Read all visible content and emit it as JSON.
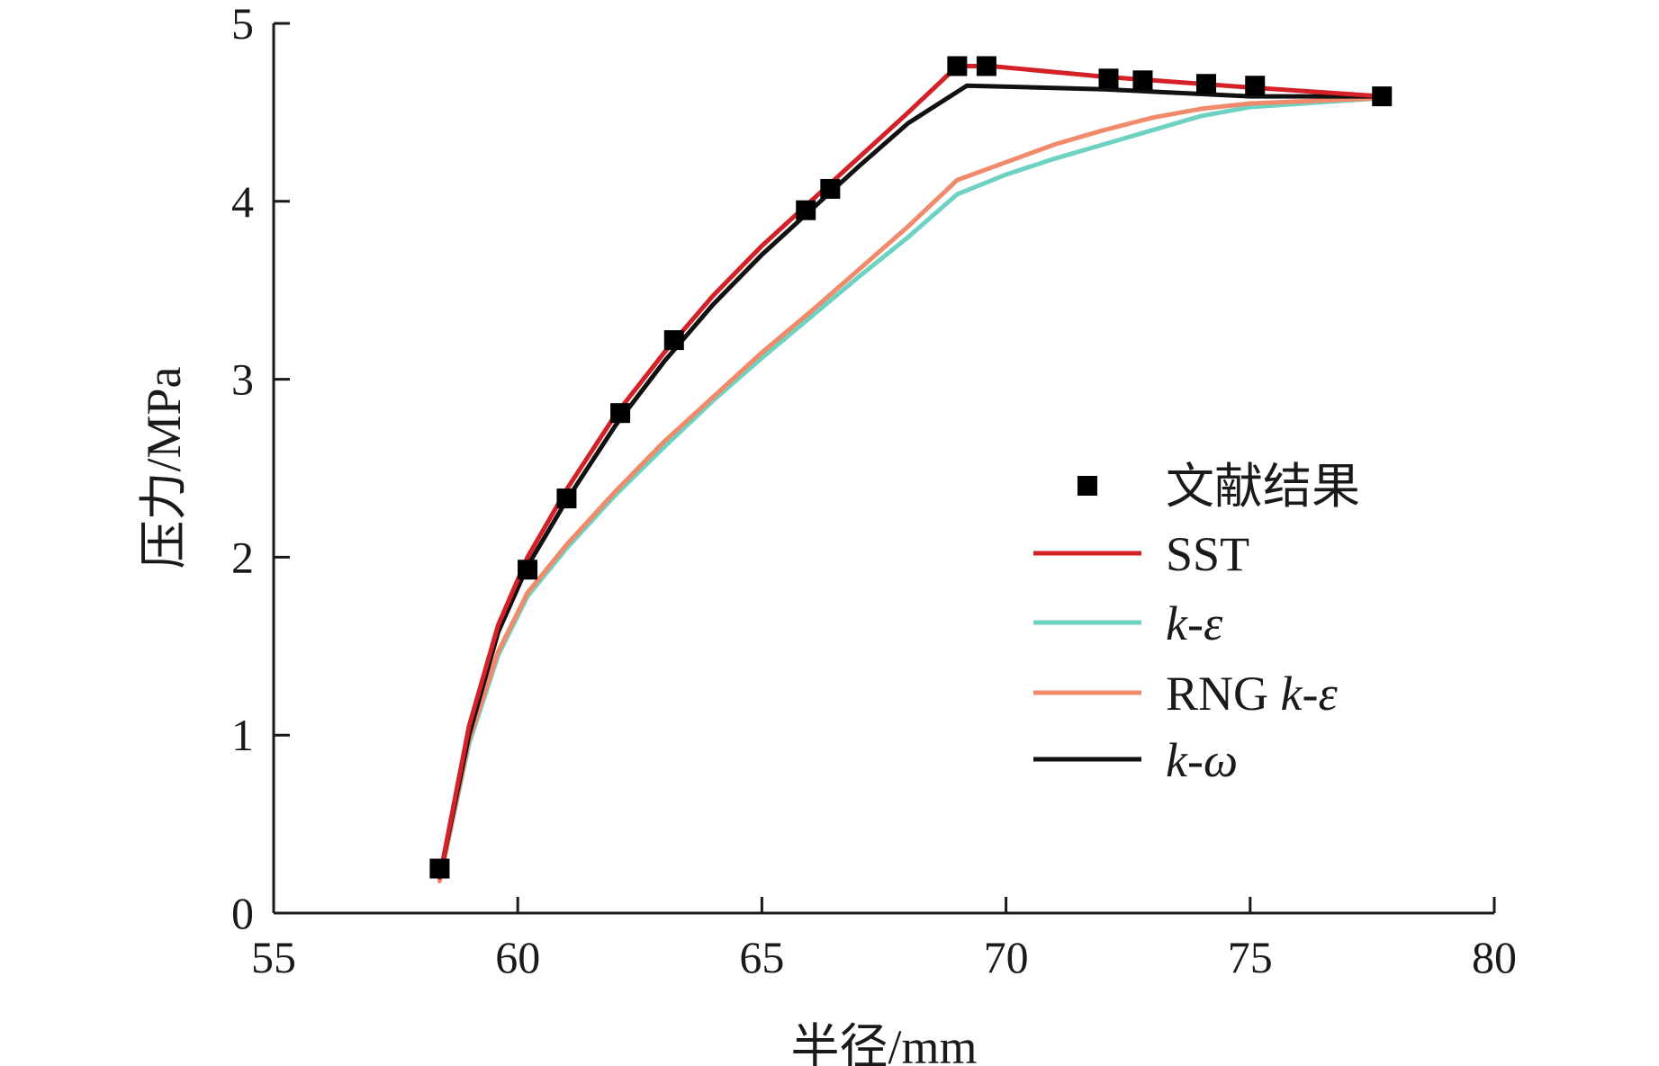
{
  "chart_data": {
    "type": "line",
    "xlabel": "半径/mm",
    "ylabel": "压力/MPa",
    "xlim": [
      55,
      80
    ],
    "ylim": [
      0,
      5
    ],
    "xticks": [
      55,
      60,
      65,
      70,
      75,
      80
    ],
    "yticks": [
      0,
      1,
      2,
      3,
      4,
      5
    ],
    "grid": false,
    "legend_position": "right-center",
    "scatter_series": {
      "name": "文献结果",
      "color": "#000000",
      "marker": "square",
      "points": [
        [
          58.4,
          0.25
        ],
        [
          60.2,
          1.93
        ],
        [
          61.0,
          2.33
        ],
        [
          62.1,
          2.81
        ],
        [
          63.2,
          3.22
        ],
        [
          65.9,
          3.95
        ],
        [
          66.4,
          4.07
        ],
        [
          69.0,
          4.76
        ],
        [
          69.6,
          4.76
        ],
        [
          72.1,
          4.69
        ],
        [
          72.8,
          4.68
        ],
        [
          74.1,
          4.66
        ],
        [
          75.1,
          4.65
        ],
        [
          77.7,
          4.59
        ]
      ]
    },
    "series": [
      {
        "name": "SST",
        "legend_parts": [
          {
            "text": "SST",
            "italic": false
          }
        ],
        "color": "#d42027",
        "points": [
          [
            58.4,
            0.2
          ],
          [
            59.0,
            1.05
          ],
          [
            59.6,
            1.62
          ],
          [
            60.2,
            2.0
          ],
          [
            61.0,
            2.38
          ],
          [
            62.0,
            2.8
          ],
          [
            63.0,
            3.15
          ],
          [
            64.0,
            3.47
          ],
          [
            65.0,
            3.75
          ],
          [
            66.0,
            4.0
          ],
          [
            67.0,
            4.25
          ],
          [
            68.0,
            4.5
          ],
          [
            69.0,
            4.76
          ],
          [
            69.7,
            4.76
          ],
          [
            72.0,
            4.7
          ],
          [
            75.0,
            4.64
          ],
          [
            77.7,
            4.59
          ]
        ]
      },
      {
        "name": "k-ε",
        "legend_parts": [
          {
            "text": "k",
            "italic": true
          },
          {
            "text": "-",
            "italic": false
          },
          {
            "text": "ε",
            "italic": true
          }
        ],
        "color": "#6ed2c2",
        "points": [
          [
            58.4,
            0.18
          ],
          [
            59.0,
            0.95
          ],
          [
            59.6,
            1.45
          ],
          [
            60.2,
            1.78
          ],
          [
            61.0,
            2.05
          ],
          [
            62.0,
            2.35
          ],
          [
            63.0,
            2.62
          ],
          [
            64.0,
            2.88
          ],
          [
            65.0,
            3.12
          ],
          [
            66.0,
            3.35
          ],
          [
            67.0,
            3.58
          ],
          [
            68.0,
            3.8
          ],
          [
            69.0,
            4.04
          ],
          [
            70.0,
            4.15
          ],
          [
            71.0,
            4.24
          ],
          [
            72.0,
            4.32
          ],
          [
            73.0,
            4.4
          ],
          [
            74.0,
            4.48
          ],
          [
            75.0,
            4.53
          ],
          [
            77.7,
            4.58
          ]
        ]
      },
      {
        "name": "RNG k-ε",
        "legend_parts": [
          {
            "text": "RNG ",
            "italic": false
          },
          {
            "text": "k",
            "italic": true
          },
          {
            "text": "-",
            "italic": false
          },
          {
            "text": "ε",
            "italic": true
          }
        ],
        "color": "#f08a6a",
        "points": [
          [
            58.4,
            0.18
          ],
          [
            59.0,
            0.97
          ],
          [
            59.6,
            1.47
          ],
          [
            60.2,
            1.8
          ],
          [
            61.0,
            2.07
          ],
          [
            62.0,
            2.37
          ],
          [
            63.0,
            2.65
          ],
          [
            64.0,
            2.9
          ],
          [
            65.0,
            3.15
          ],
          [
            66.0,
            3.38
          ],
          [
            67.0,
            3.62
          ],
          [
            68.0,
            3.86
          ],
          [
            69.0,
            4.12
          ],
          [
            70.0,
            4.22
          ],
          [
            71.0,
            4.32
          ],
          [
            72.0,
            4.4
          ],
          [
            73.0,
            4.47
          ],
          [
            74.0,
            4.52
          ],
          [
            75.0,
            4.55
          ],
          [
            77.7,
            4.58
          ]
        ]
      },
      {
        "name": "k-ω",
        "legend_parts": [
          {
            "text": "k",
            "italic": true
          },
          {
            "text": "-",
            "italic": false
          },
          {
            "text": "ω",
            "italic": true
          }
        ],
        "color": "#111111",
        "points": [
          [
            58.4,
            0.2
          ],
          [
            59.0,
            1.0
          ],
          [
            59.6,
            1.58
          ],
          [
            60.2,
            1.95
          ],
          [
            61.0,
            2.32
          ],
          [
            62.0,
            2.74
          ],
          [
            63.0,
            3.1
          ],
          [
            64.0,
            3.42
          ],
          [
            65.0,
            3.7
          ],
          [
            66.0,
            3.95
          ],
          [
            67.0,
            4.2
          ],
          [
            68.0,
            4.44
          ],
          [
            69.2,
            4.65
          ],
          [
            72.0,
            4.63
          ],
          [
            75.0,
            4.59
          ],
          [
            77.7,
            4.59
          ]
        ]
      }
    ]
  }
}
